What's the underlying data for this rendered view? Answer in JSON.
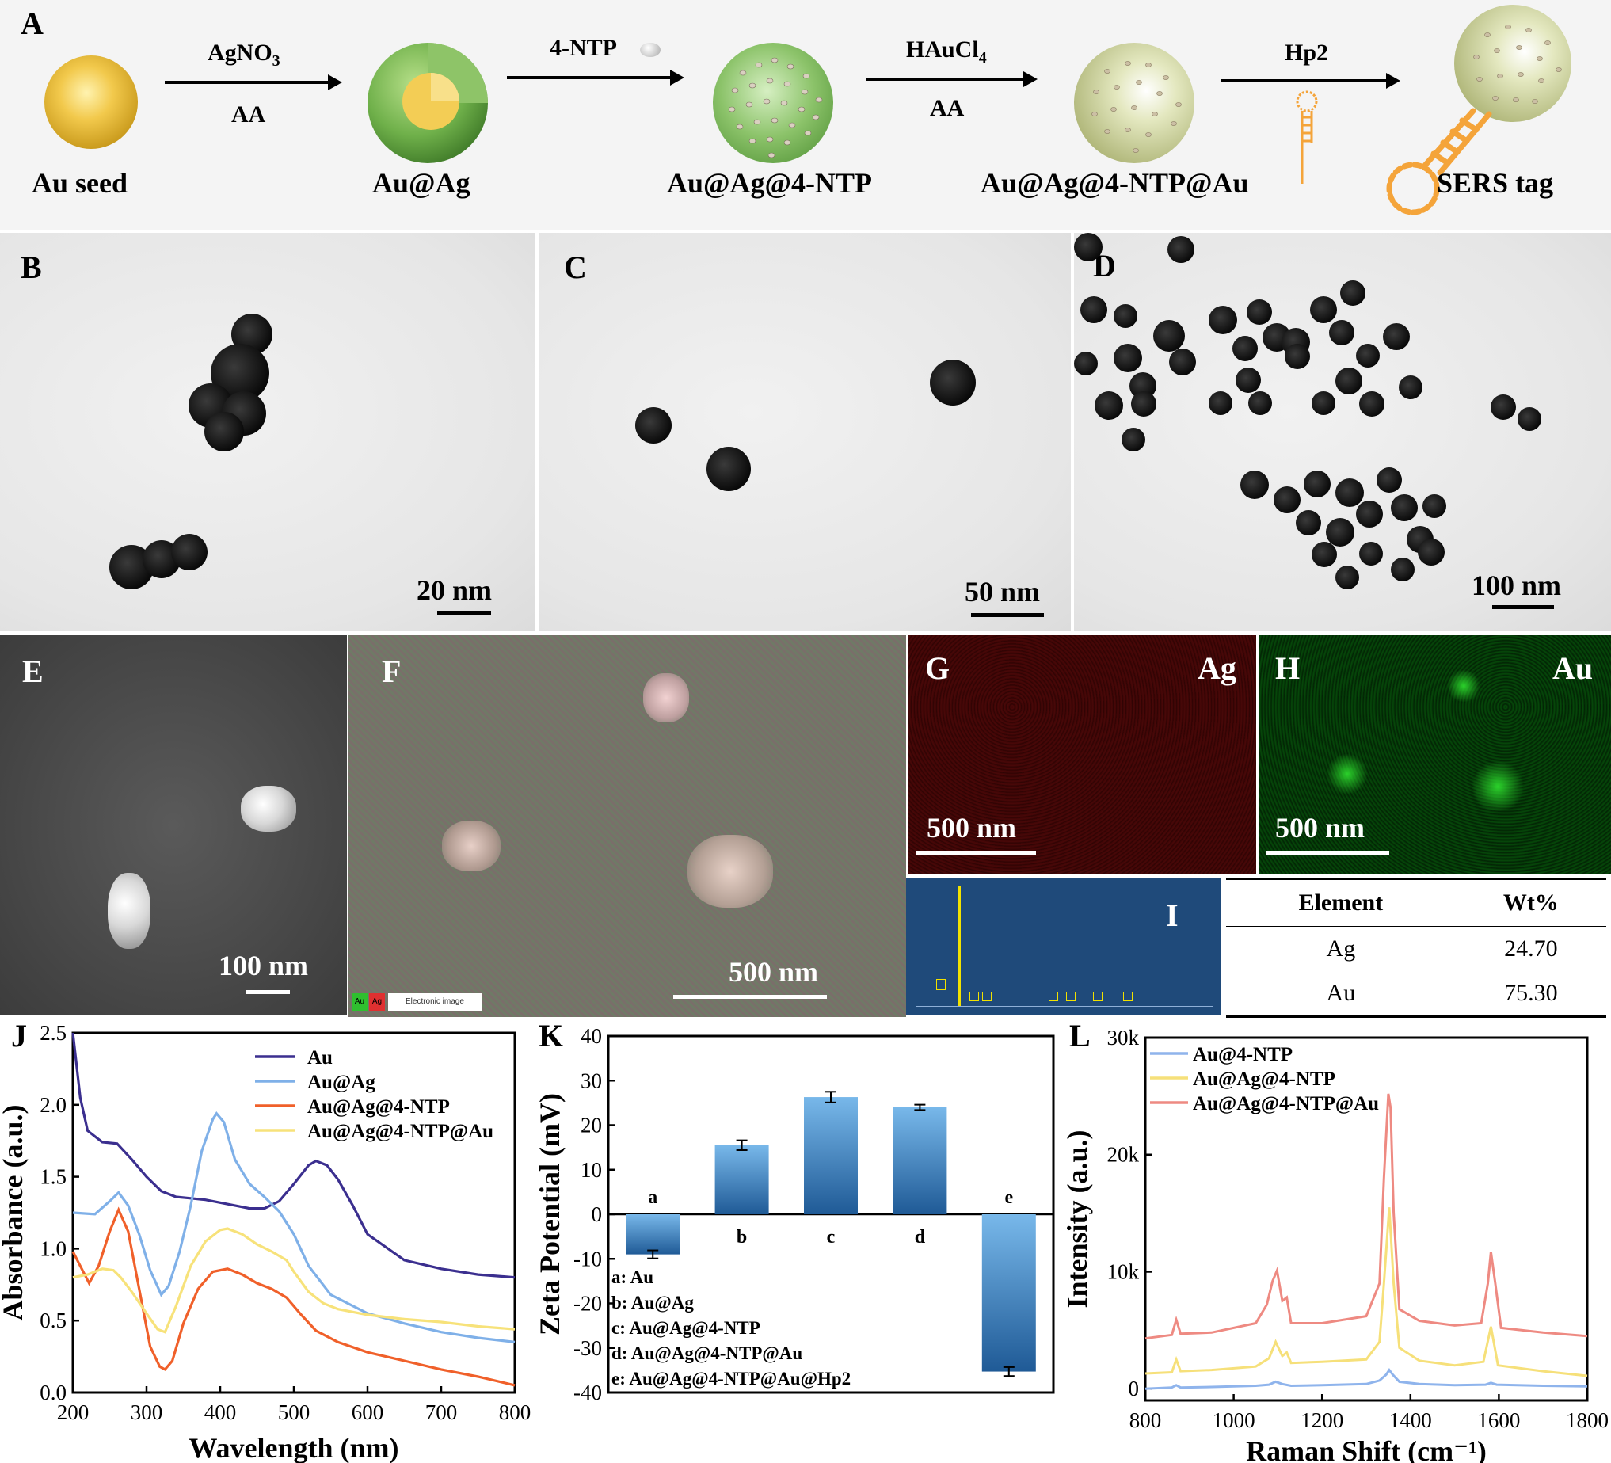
{
  "panels": {
    "A": {
      "letter": "A",
      "steps": [
        {
          "label": "Au seed"
        },
        {
          "label": "Au@Ag",
          "arrow_top": "AgNO3",
          "arrow_top_main": "AgNO",
          "arrow_top_sub": "3",
          "arrow_bottom": "AA"
        },
        {
          "label": "Au@Ag@4-NTP",
          "arrow_top": "4-NTP",
          "arrow_bottom": ""
        },
        {
          "label": "Au@Ag@4-NTP@Au",
          "arrow_top": "HAuCl4",
          "arrow_top_main": "HAuCl",
          "arrow_top_sub": "4",
          "arrow_bottom": "AA"
        },
        {
          "label": "SERS tag",
          "arrow_top": "Hp2",
          "arrow_bottom": ""
        }
      ]
    },
    "B": {
      "letter": "B",
      "scale": "20 nm"
    },
    "C": {
      "letter": "C",
      "scale": "50 nm"
    },
    "D": {
      "letter": "D",
      "scale": "100 nm"
    },
    "E": {
      "letter": "E",
      "scale": "100 nm"
    },
    "F": {
      "letter": "F",
      "scale": "500 nm",
      "legend_au": "Au",
      "legend_ag": "Ag",
      "legend_label": "Electronic image"
    },
    "G": {
      "letter": "G",
      "element": "Ag",
      "scale": "500 nm"
    },
    "H": {
      "letter": "H",
      "element": "Au",
      "scale": "500 nm"
    },
    "I": {
      "letter": "I",
      "table_headers": [
        "Element",
        "Wt%"
      ],
      "table_rows": [
        [
          "Ag",
          "24.70"
        ],
        [
          "Au",
          "75.30"
        ]
      ]
    },
    "J": {
      "letter": "J"
    },
    "K": {
      "letter": "K"
    },
    "L": {
      "letter": "L"
    }
  },
  "colors": {
    "au": "#3b2f8f",
    "auag": "#7fb0e8",
    "auag4ntp": "#f0602a",
    "auag4ntpau": "#f7e27a",
    "bar_top": "#78b8ea",
    "bar_bottom": "#1f5a96",
    "raman_blue": "#8fb4ec",
    "raman_yellow": "#f6e07a",
    "raman_red": "#ee8a82",
    "eds_bg": "#1f4a7a"
  },
  "chart_data": [
    {
      "id": "J",
      "type": "line",
      "xlabel": "Wavelength (nm)",
      "ylabel": "Absorbance (a.u.)",
      "xlim": [
        200,
        800
      ],
      "ylim": [
        0.0,
        2.5
      ],
      "xticks": [
        "200",
        "300",
        "400",
        "500",
        "600",
        "700",
        "800"
      ],
      "yticks": [
        "0.0",
        "0.5",
        "1.0",
        "1.5",
        "2.0",
        "2.5"
      ],
      "legend": "top-right",
      "series": [
        {
          "name": "Au",
          "color": "#3b2f8f",
          "x": [
            200,
            210,
            220,
            240,
            260,
            280,
            300,
            320,
            340,
            360,
            380,
            400,
            420,
            440,
            460,
            480,
            500,
            520,
            530,
            545,
            560,
            580,
            600,
            650,
            700,
            750,
            800
          ],
          "y": [
            2.5,
            2.05,
            1.82,
            1.74,
            1.73,
            1.62,
            1.5,
            1.4,
            1.36,
            1.35,
            1.34,
            1.32,
            1.3,
            1.28,
            1.28,
            1.33,
            1.45,
            1.58,
            1.61,
            1.58,
            1.48,
            1.3,
            1.1,
            0.92,
            0.86,
            0.82,
            0.8
          ]
        },
        {
          "name": "Au@Ag",
          "color": "#7fb0e8",
          "x": [
            200,
            230,
            250,
            262,
            275,
            290,
            305,
            320,
            330,
            345,
            360,
            375,
            390,
            395,
            405,
            420,
            440,
            460,
            480,
            500,
            520,
            550,
            600,
            650,
            700,
            750,
            800
          ],
          "y": [
            1.25,
            1.24,
            1.33,
            1.39,
            1.3,
            1.1,
            0.85,
            0.68,
            0.74,
            0.98,
            1.3,
            1.68,
            1.9,
            1.94,
            1.88,
            1.62,
            1.45,
            1.36,
            1.26,
            1.1,
            0.88,
            0.68,
            0.55,
            0.48,
            0.42,
            0.38,
            0.35
          ]
        },
        {
          "name": "Au@Ag@4-NTP",
          "color": "#f0602a",
          "x": [
            200,
            210,
            222,
            235,
            250,
            262,
            275,
            290,
            305,
            318,
            325,
            335,
            350,
            370,
            390,
            410,
            430,
            450,
            470,
            490,
            510,
            530,
            560,
            600,
            650,
            700,
            750,
            800
          ],
          "y": [
            0.98,
            0.88,
            0.76,
            0.88,
            1.12,
            1.27,
            1.12,
            0.72,
            0.32,
            0.18,
            0.16,
            0.22,
            0.48,
            0.72,
            0.84,
            0.86,
            0.82,
            0.76,
            0.72,
            0.66,
            0.54,
            0.43,
            0.35,
            0.28,
            0.22,
            0.16,
            0.11,
            0.05
          ]
        },
        {
          "name": "Au@Ag@4-NTP@Au",
          "color": "#f7e27a",
          "x": [
            200,
            220,
            240,
            255,
            265,
            280,
            300,
            315,
            325,
            340,
            360,
            380,
            400,
            410,
            430,
            450,
            470,
            490,
            500,
            520,
            540,
            560,
            600,
            650,
            700,
            750,
            800
          ],
          "y": [
            0.8,
            0.82,
            0.86,
            0.85,
            0.8,
            0.7,
            0.55,
            0.44,
            0.42,
            0.6,
            0.88,
            1.05,
            1.13,
            1.14,
            1.1,
            1.03,
            0.98,
            0.92,
            0.84,
            0.7,
            0.62,
            0.58,
            0.54,
            0.51,
            0.49,
            0.46,
            0.44
          ]
        }
      ]
    },
    {
      "id": "K",
      "type": "bar",
      "ylabel": "Zeta Potential (mV)",
      "ylim": [
        -40,
        40
      ],
      "yticks": [
        "-40",
        "-30",
        "-20",
        "-10",
        "0",
        "10",
        "20",
        "30",
        "40"
      ],
      "categories": [
        "a",
        "b",
        "c",
        "d",
        "e"
      ],
      "values": [
        -9.0,
        15.5,
        26.3,
        24.0,
        -35.3
      ],
      "errors": [
        0.9,
        1.1,
        1.2,
        0.6,
        1.0
      ],
      "key": [
        "a: Au",
        "b: Au@Ag",
        "c: Au@Ag@4-NTP",
        "d: Au@Ag@4-NTP@Au",
        "e: Au@Ag@4-NTP@Au@Hp2"
      ]
    },
    {
      "id": "L",
      "type": "line",
      "xlabel": "Raman Shift (cm⁻¹)",
      "ylabel": "Intensity (a.u.)",
      "xlim": [
        800,
        1800
      ],
      "ylim": [
        -1000,
        30000
      ],
      "xticks": [
        "800",
        "1000",
        "1200",
        "1400",
        "1600",
        "1800"
      ],
      "yticks": [
        "0",
        "10k",
        "20k",
        "30k"
      ],
      "legend": "top-left",
      "series": [
        {
          "name": "Au@4-NTP",
          "color": "#8fb4ec",
          "x": [
            800,
            860,
            870,
            880,
            950,
            1050,
            1080,
            1095,
            1110,
            1130,
            1200,
            1300,
            1330,
            1345,
            1352,
            1360,
            1375,
            1420,
            1500,
            1570,
            1582,
            1595,
            1700,
            1800
          ],
          "y": [
            0,
            100,
            300,
            100,
            150,
            250,
            350,
            600,
            400,
            250,
            300,
            400,
            700,
            1200,
            1600,
            1200,
            600,
            400,
            300,
            350,
            500,
            350,
            250,
            200
          ]
        },
        {
          "name": "Au@Ag@4-NTP",
          "color": "#f6e07a",
          "x": [
            800,
            860,
            870,
            880,
            950,
            1050,
            1080,
            1095,
            1110,
            1120,
            1130,
            1200,
            1300,
            1330,
            1340,
            1352,
            1362,
            1375,
            1420,
            1500,
            1565,
            1582,
            1598,
            1700,
            1800
          ],
          "y": [
            1300,
            1400,
            2500,
            1500,
            1600,
            1900,
            2600,
            4000,
            2800,
            3100,
            2200,
            2300,
            2500,
            4000,
            9000,
            15500,
            9000,
            3500,
            2400,
            2000,
            2300,
            5300,
            2000,
            1500,
            1100
          ]
        },
        {
          "name": "Au@Ag@4-NTP@Au",
          "color": "#ee8a82",
          "x": [
            800,
            860,
            870,
            880,
            950,
            1050,
            1075,
            1088,
            1098,
            1110,
            1120,
            1130,
            1200,
            1300,
            1330,
            1340,
            1350,
            1355,
            1362,
            1375,
            1420,
            1500,
            1560,
            1575,
            1582,
            1592,
            1605,
            1700,
            1800
          ],
          "y": [
            4300,
            4600,
            5900,
            4700,
            4800,
            5600,
            7200,
            9200,
            10100,
            7500,
            7800,
            5600,
            5600,
            6200,
            9000,
            18000,
            25200,
            24000,
            15000,
            6800,
            5800,
            5400,
            5600,
            9000,
            11700,
            9000,
            5200,
            4800,
            4500
          ]
        }
      ]
    }
  ]
}
